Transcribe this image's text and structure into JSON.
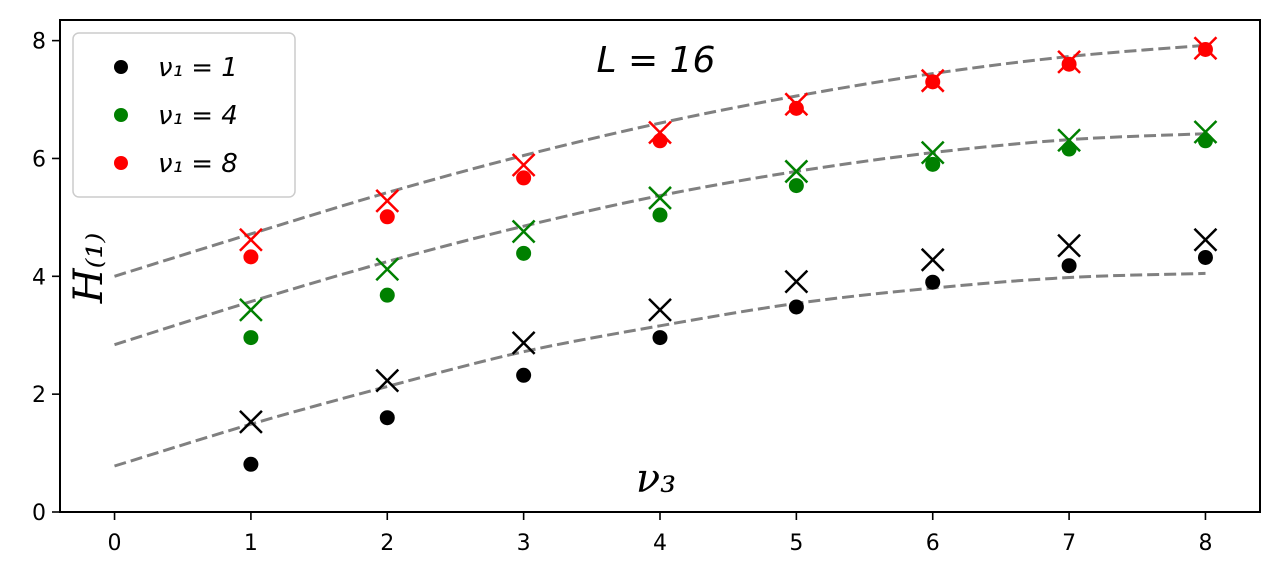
{
  "chart_data": {
    "type": "scatter",
    "annotation": "L = 16",
    "xlabel": "ν₃",
    "ylabel": "H₍₁₎",
    "xlim": [
      -0.4,
      8.4
    ],
    "ylim": [
      0,
      8.35
    ],
    "xticks": [
      0,
      1,
      2,
      3,
      4,
      5,
      6,
      7,
      8
    ],
    "yticks": [
      0,
      2,
      4,
      6,
      8
    ],
    "grid": false,
    "legend_position": "top-left",
    "x": [
      1,
      2,
      3,
      4,
      5,
      6,
      7,
      8
    ],
    "series": [
      {
        "name": "ν₁ = 1",
        "color": "#000000",
        "dots": [
          0.81,
          1.6,
          2.32,
          2.96,
          3.48,
          3.9,
          4.18,
          4.32
        ],
        "crosses": [
          1.53,
          2.23,
          2.87,
          3.43,
          3.91,
          4.28,
          4.52,
          4.62
        ],
        "curve": [
          0.78,
          1.49,
          2.13,
          2.72,
          3.16,
          3.54,
          3.8,
          3.98,
          4.05
        ]
      },
      {
        "name": "ν₁ = 4",
        "color": "#008000",
        "dots": [
          2.96,
          3.68,
          4.39,
          5.04,
          5.54,
          5.9,
          6.16,
          6.3
        ],
        "crosses": [
          3.43,
          4.12,
          4.76,
          5.33,
          5.78,
          6.1,
          6.31,
          6.45
        ],
        "curve": [
          2.84,
          3.57,
          4.25,
          4.85,
          5.37,
          5.78,
          6.1,
          6.32,
          6.42
        ]
      },
      {
        "name": "ν₁ = 8",
        "color": "#ff0000",
        "dots": [
          4.33,
          5.01,
          5.67,
          6.3,
          6.85,
          7.3,
          7.6,
          7.85
        ],
        "crosses": [
          4.62,
          5.28,
          5.89,
          6.44,
          6.92,
          7.32,
          7.64,
          7.87
        ],
        "curve": [
          4.0,
          4.72,
          5.42,
          6.05,
          6.6,
          7.06,
          7.44,
          7.73,
          7.92
        ]
      }
    ],
    "reference_curve_color": "#808080"
  }
}
